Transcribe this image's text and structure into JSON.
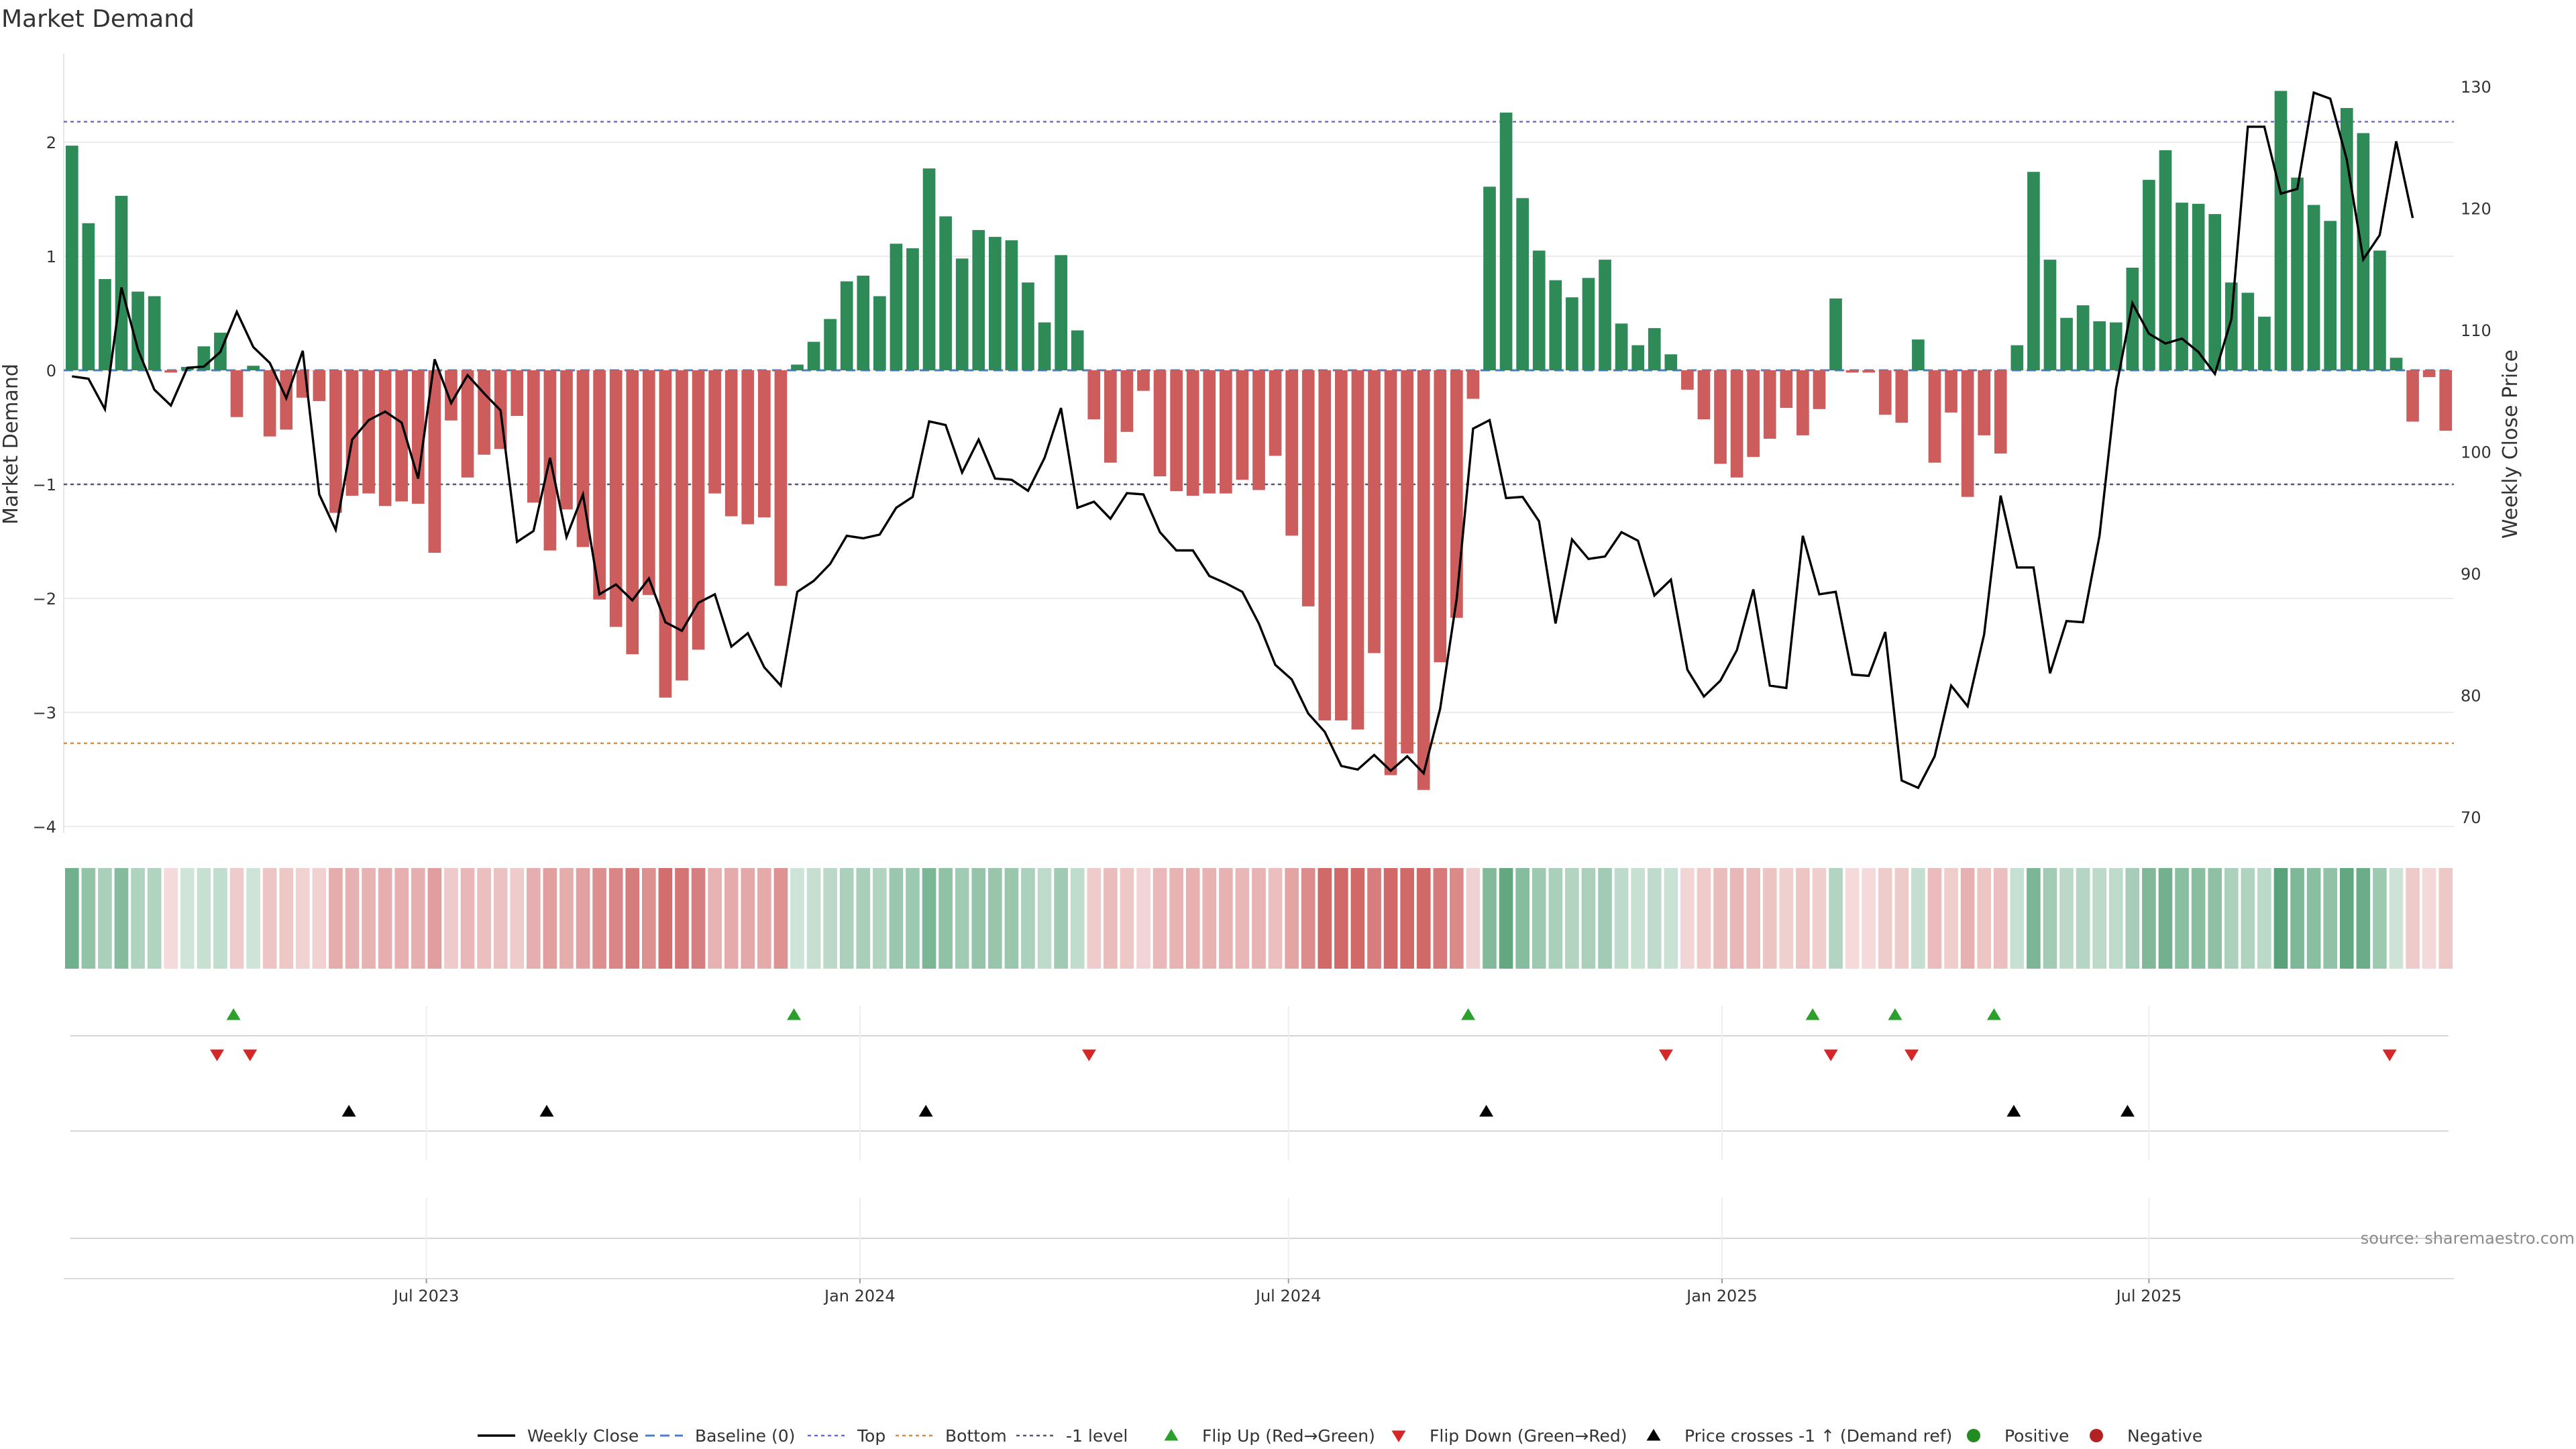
{
  "chart_data": {
    "type": "bar",
    "title": "Market Demand",
    "ylabel": "Market Demand",
    "y2label": "Weekly Close Price",
    "ylim": [
      -4.2,
      2.8
    ],
    "y2lim": [
      67.5,
      131.7
    ],
    "yticks": [
      "2",
      "1",
      "0",
      "−1",
      "−2",
      "−3",
      "−4"
    ],
    "y2ticks": [
      "130",
      "120",
      "110",
      "100",
      "90",
      "80",
      "70"
    ],
    "x_tick_labels": [
      "Jul 2023",
      "Jan 2024",
      "Jul 2024",
      "Jan 2025",
      "Jul 2025"
    ],
    "x_tick_weeks": [
      21.5,
      47.8,
      73.8,
      100.1,
      126.0
    ],
    "reference_lines": {
      "top": 2.18,
      "bottom": -3.27,
      "minus_one": -1.0,
      "baseline": 0
    },
    "demand": [
      1.97,
      1.29,
      0.8,
      1.53,
      0.69,
      0.65,
      -0.02,
      0.03,
      0.21,
      0.33,
      -0.41,
      0.04,
      -0.58,
      -0.52,
      -0.24,
      -0.27,
      -1.25,
      -1.1,
      -1.08,
      -1.19,
      -1.15,
      -1.17,
      -1.6,
      -0.44,
      -0.94,
      -0.74,
      -0.69,
      -0.4,
      -1.16,
      -1.58,
      -1.22,
      -1.55,
      -2.01,
      -2.25,
      -2.49,
      -1.97,
      -2.87,
      -2.72,
      -2.45,
      -1.08,
      -1.28,
      -1.35,
      -1.29,
      -1.89,
      0.05,
      0.25,
      0.45,
      0.78,
      0.83,
      0.65,
      1.11,
      1.07,
      1.77,
      1.35,
      0.98,
      1.23,
      1.17,
      1.14,
      0.77,
      0.42,
      1.01,
      0.35,
      -0.43,
      -0.81,
      -0.54,
      -0.18,
      -0.93,
      -1.06,
      -1.1,
      -1.08,
      -1.08,
      -0.96,
      -1.05,
      -0.75,
      -1.45,
      -2.07,
      -3.07,
      -3.07,
      -3.15,
      -2.48,
      -3.55,
      -3.36,
      -3.68,
      -2.56,
      -2.17,
      -0.25,
      1.61,
      2.26,
      1.51,
      1.05,
      0.79,
      0.64,
      0.81,
      0.97,
      0.41,
      0.22,
      0.37,
      0.14,
      -0.17,
      -0.43,
      -0.82,
      -0.94,
      -0.76,
      -0.6,
      -0.33,
      -0.57,
      -0.34,
      0.63,
      -0.02,
      -0.02,
      -0.39,
      -0.46,
      0.27,
      -0.81,
      -0.37,
      -1.11,
      -0.57,
      -0.73,
      0.22,
      1.74,
      0.97,
      0.46,
      0.57,
      0.43,
      0.42,
      0.9,
      1.67,
      1.93,
      1.47,
      1.46,
      1.37,
      0.77,
      0.68,
      0.47,
      2.45,
      1.69,
      1.45,
      1.31,
      2.3,
      2.08,
      1.05,
      0.11,
      -0.45,
      -0.06,
      -0.53
    ],
    "series": [
      {
        "name": "Weekly Close",
        "values": [
          106.2,
          106.0,
          103.5,
          113.5,
          108.4,
          105.1,
          103.8,
          106.9,
          107.0,
          108.2,
          111.5,
          108.6,
          107.3,
          104.4,
          108.3,
          96.5,
          93.6,
          101.0,
          102.6,
          103.3,
          102.4,
          97.8,
          107.6,
          104.0,
          106.3,
          104.8,
          103.4,
          92.6,
          93.5,
          99.5,
          93.0,
          96.5,
          88.3,
          89.1,
          87.8,
          89.6,
          86.0,
          85.3,
          87.6,
          88.3,
          84.0,
          85.1,
          82.3,
          80.8,
          88.5,
          89.4,
          90.8,
          93.1,
          92.9,
          93.2,
          95.4,
          96.3,
          102.5,
          102.2,
          98.3,
          101.0,
          97.8,
          97.7,
          96.8,
          99.5,
          103.6,
          95.4,
          95.9,
          94.5,
          96.6,
          96.5,
          93.4,
          91.9,
          91.9,
          89.8,
          89.2,
          88.5,
          85.9,
          82.5,
          81.3,
          78.5,
          77.0,
          74.2,
          73.9,
          75.1,
          73.8,
          75.0,
          73.6,
          78.9,
          87.9,
          101.9,
          102.6,
          96.2,
          96.3,
          94.3,
          85.9,
          92.8,
          91.2,
          91.4,
          93.4,
          92.7,
          88.2,
          89.5,
          82.1,
          79.9,
          81.2,
          83.7,
          88.7,
          80.8,
          80.6,
          93.1,
          88.3,
          88.5,
          81.7,
          81.6,
          85.2,
          73.0,
          72.4,
          75.0,
          80.8,
          79.1,
          85.0,
          96.4,
          90.5,
          90.5,
          81.8,
          86.1,
          86.0,
          93.1,
          105.2,
          112.2,
          109.7,
          108.9,
          109.3,
          108.2,
          106.4,
          110.9,
          126.7,
          126.7,
          121.2,
          121.6,
          129.5,
          129.0,
          124.0,
          115.8,
          117.8,
          125.5,
          119.2
        ]
      }
    ],
    "flip_up_weeks": [
      9.8,
      43.8,
      84.7,
      105.6,
      110.6,
      116.6
    ],
    "flip_down_weeks": [
      8.8,
      10.8,
      61.7,
      96.7,
      106.7,
      111.6,
      140.6
    ],
    "price_cross_weeks": [
      16.8,
      28.8,
      51.8,
      85.8,
      117.8,
      124.7
    ],
    "legend": {
      "placement": "bottom",
      "items": [
        "Weekly Close",
        "Baseline (0)",
        "Top",
        "Bottom",
        "-1 level",
        "Flip Up (Red→Green)",
        "Flip Down (Green→Red)",
        "Price crosses -1 ↑ (Demand ref)",
        "Positive",
        "Negative"
      ]
    },
    "source": "source: sharemaestro.com",
    "colors": {
      "positive_bar": "#2e8b57",
      "negative_bar": "#cd5c5c",
      "price_line": "#000000",
      "baseline": "#4a7fc1",
      "top_line": "#6a6acd",
      "bottom_line": "#e08a2e",
      "minus_one_line": "#555577",
      "flip_up": "#2ca02c",
      "flip_down": "#d62728",
      "cross": "#000000",
      "positive_dot": "#228b22",
      "negative_dot": "#b22222"
    }
  }
}
